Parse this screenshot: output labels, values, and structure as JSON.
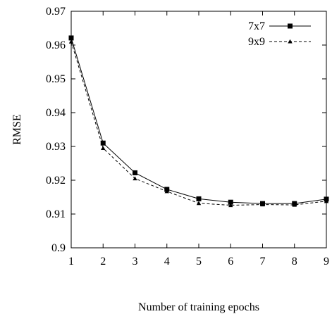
{
  "chart_data": {
    "type": "line",
    "title": "",
    "xlabel": "Number of training epochs",
    "ylabel": "RMSE",
    "x": [
      1,
      2,
      3,
      4,
      5,
      6,
      7,
      8,
      9
    ],
    "xlim": [
      1,
      9
    ],
    "ylim": [
      0.9,
      0.97
    ],
    "x_ticks": [
      "1",
      "2",
      "3",
      "4",
      "5",
      "6",
      "7",
      "8",
      "9"
    ],
    "y_ticks": [
      "0.9",
      "0.91",
      "0.92",
      "0.93",
      "0.94",
      "0.95",
      "0.96",
      "0.97"
    ],
    "grid": false,
    "legend_position": "top-right",
    "series": [
      {
        "name": "7x7",
        "marker": "square",
        "line_style": "solid",
        "color": "#000000",
        "values": [
          0.9621,
          0.931,
          0.9222,
          0.9173,
          0.9145,
          0.9135,
          0.9131,
          0.9131,
          0.9144
        ]
      },
      {
        "name": "9x9",
        "marker": "triangle",
        "line_style": "dashed",
        "color": "#000000",
        "values": [
          0.961,
          0.9295,
          0.9205,
          0.9167,
          0.9132,
          0.9126,
          0.9128,
          0.9127,
          0.9138
        ]
      }
    ]
  }
}
